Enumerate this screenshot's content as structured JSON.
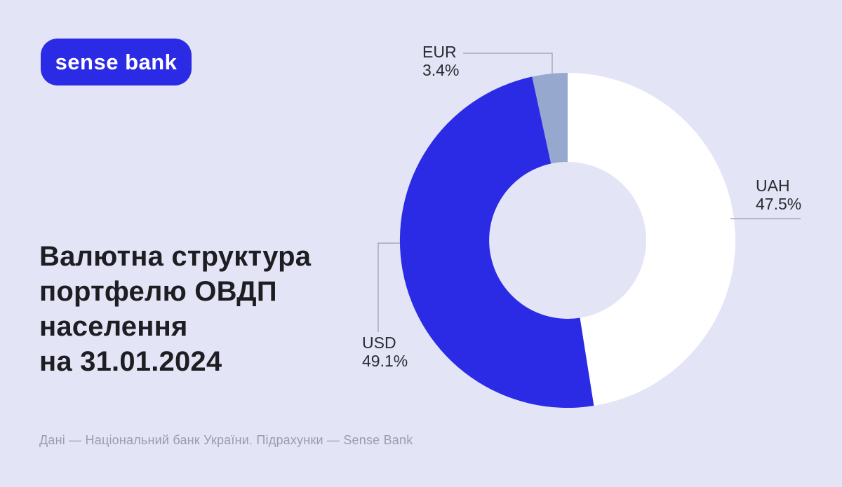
{
  "page": {
    "background_color": "#e4e4f7"
  },
  "logo": {
    "text": "sense bank",
    "bg_color": "#2b2be6",
    "text_color": "#ffffff"
  },
  "title": "Валютна структура\nпортфелю ОВДП\nнаселення\nна 31.01.2024",
  "footer": "Дані — Національний банк України. Підрахунки — Sense Bank",
  "chart_data": {
    "type": "pie",
    "donut": true,
    "title": "Валютна структура портфелю ОВДП населення на 31.01.2024",
    "start_angle_deg": 0,
    "direction": "clockwise",
    "legend_position": "callout-labels",
    "slices": [
      {
        "label": "UAH",
        "value": 47.5,
        "pct_label": "47.5%",
        "color": "#ffffff"
      },
      {
        "label": "USD",
        "value": 49.1,
        "pct_label": "49.1%",
        "color": "#2b2be6"
      },
      {
        "label": "EUR",
        "value": 3.4,
        "pct_label": "3.4%",
        "color": "#96a8ce"
      }
    ]
  }
}
